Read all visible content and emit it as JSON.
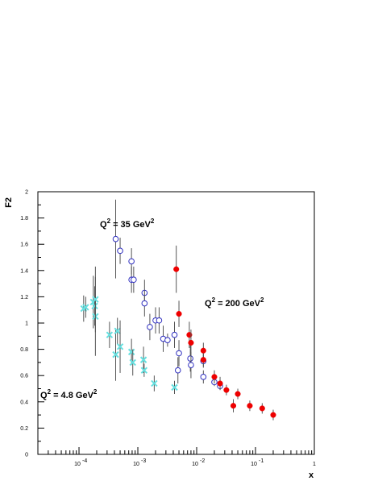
{
  "chart_data": {
    "type": "scatter",
    "xlabel": "x",
    "ylabel": "F2",
    "xscale": "log",
    "xlim": [
      2e-05,
      1
    ],
    "ylim": [
      0,
      2
    ],
    "grid": false,
    "legend": "none",
    "x_tick_labels": [
      "10",
      "-4",
      "10",
      "-3",
      "10",
      "-2",
      "10",
      "-1",
      "1"
    ],
    "y_tick_labels": [
      "0",
      "0.2",
      "0.4",
      "0.6",
      "0.8",
      "1",
      "1.2",
      "1.4",
      "1.6",
      "1.8",
      "2"
    ],
    "annotations": [
      {
        "base": "Q",
        "sup1": "2",
        "mid": " = 35 GeV",
        "sup2": "2"
      },
      {
        "base": "Q",
        "sup1": "2",
        "mid": " = 200 GeV",
        "sup2": "2"
      },
      {
        "base": "Q",
        "sup1": "2",
        "mid": " = 4.8 GeV",
        "sup2": "2"
      }
    ],
    "series": [
      {
        "marker": "cross",
        "color": "#66e0e0",
        "points": [
          {
            "x": 0.00012,
            "y": 1.11,
            "err": 0.1
          },
          {
            "x": 0.00013,
            "y": 1.12,
            "err": 0.08
          },
          {
            "x": 0.000175,
            "y": 1.16,
            "err": 0.2
          },
          {
            "x": 0.000185,
            "y": 1.13,
            "err": 0.15
          },
          {
            "x": 0.00019,
            "y": 1.05,
            "err": 0.3
          },
          {
            "x": 0.00019,
            "y": 1.18,
            "err": 0.25
          },
          {
            "x": 0.00033,
            "y": 0.91,
            "err": 0.1
          },
          {
            "x": 0.00042,
            "y": 0.76,
            "err": 0.2
          },
          {
            "x": 0.00045,
            "y": 0.94,
            "err": 0.1
          },
          {
            "x": 0.0005,
            "y": 0.82,
            "err": 0.2
          },
          {
            "x": 0.00078,
            "y": 0.78,
            "err": 0.1
          },
          {
            "x": 0.00082,
            "y": 0.7,
            "err": 0.1
          },
          {
            "x": 0.00125,
            "y": 0.72,
            "err": 0.1
          },
          {
            "x": 0.00128,
            "y": 0.64,
            "err": 0.05
          },
          {
            "x": 0.0019,
            "y": 0.54,
            "err": 0.06
          },
          {
            "x": 0.0042,
            "y": 0.51,
            "err": 0.05
          }
        ]
      },
      {
        "marker": "open-circle",
        "color": "#3030c0",
        "points": [
          {
            "x": 0.00042,
            "y": 1.64,
            "err": 0.3
          },
          {
            "x": 0.0005,
            "y": 1.55,
            "err": 0.1
          },
          {
            "x": 0.00078,
            "y": 1.47,
            "err": 0.1
          },
          {
            "x": 0.00078,
            "y": 1.33,
            "err": 0.1
          },
          {
            "x": 0.00085,
            "y": 1.33,
            "err": 0.1
          },
          {
            "x": 0.0013,
            "y": 1.23,
            "err": 0.1
          },
          {
            "x": 0.0013,
            "y": 1.15,
            "err": 0.1
          },
          {
            "x": 0.0016,
            "y": 0.97,
            "err": 0.1
          },
          {
            "x": 0.002,
            "y": 1.02,
            "err": 0.1
          },
          {
            "x": 0.0023,
            "y": 1.02,
            "err": 0.1
          },
          {
            "x": 0.0027,
            "y": 0.88,
            "err": 0.1
          },
          {
            "x": 0.0032,
            "y": 0.87,
            "err": 0.05
          },
          {
            "x": 0.0042,
            "y": 0.91,
            "err": 0.1
          },
          {
            "x": 0.0048,
            "y": 0.64,
            "err": 0.1
          },
          {
            "x": 0.005,
            "y": 0.77,
            "err": 0.1
          },
          {
            "x": 0.0078,
            "y": 0.73,
            "err": 0.1
          },
          {
            "x": 0.008,
            "y": 0.68,
            "err": 0.1
          },
          {
            "x": 0.013,
            "y": 0.71,
            "err": 0.05
          },
          {
            "x": 0.013,
            "y": 0.59,
            "err": 0.05
          },
          {
            "x": 0.02,
            "y": 0.55,
            "err": 0.03
          },
          {
            "x": 0.025,
            "y": 0.52,
            "err": 0.03
          }
        ]
      },
      {
        "marker": "filled-circle",
        "color": "#ee0000",
        "points": [
          {
            "x": 0.0045,
            "y": 1.41,
            "err": 0.18
          },
          {
            "x": 0.005,
            "y": 1.07,
            "err": 0.1
          },
          {
            "x": 0.0075,
            "y": 0.91,
            "err": 0.1
          },
          {
            "x": 0.008,
            "y": 0.85,
            "err": 0.1
          },
          {
            "x": 0.013,
            "y": 0.79,
            "err": 0.06
          },
          {
            "x": 0.013,
            "y": 0.72,
            "err": 0.05
          },
          {
            "x": 0.02,
            "y": 0.59,
            "err": 0.05
          },
          {
            "x": 0.025,
            "y": 0.54,
            "err": 0.05
          },
          {
            "x": 0.032,
            "y": 0.49,
            "err": 0.04
          },
          {
            "x": 0.042,
            "y": 0.37,
            "err": 0.05
          },
          {
            "x": 0.05,
            "y": 0.46,
            "err": 0.04
          },
          {
            "x": 0.08,
            "y": 0.37,
            "err": 0.04
          },
          {
            "x": 0.13,
            "y": 0.35,
            "err": 0.04
          },
          {
            "x": 0.2,
            "y": 0.3,
            "err": 0.04
          }
        ]
      }
    ]
  }
}
